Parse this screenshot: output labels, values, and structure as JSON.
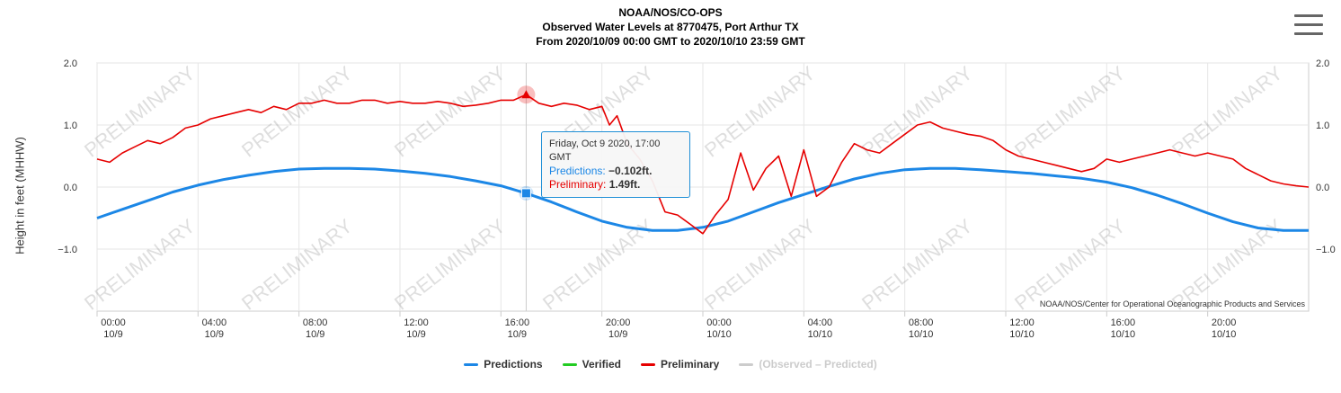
{
  "header": {
    "line1": "NOAA/NOS/CO-OPS",
    "line2": "Observed Water Levels at 8770475, Port Arthur TX",
    "line3": "From 2020/10/09 00:00 GMT to 2020/10/10 23:59 GMT"
  },
  "watermark": "PRELIMINARY",
  "credit": "NOAA/NOS/Center for Operational Oceanographic Products and Services",
  "legend": [
    {
      "label": "Predictions",
      "color": "#1c87e6",
      "disabled": false
    },
    {
      "label": "Verified",
      "color": "#22cc22",
      "disabled": false
    },
    {
      "label": "Preliminary",
      "color": "#e60000",
      "disabled": false
    },
    {
      "label": "(Observed – Predicted)",
      "color": "#cccccc",
      "disabled": true
    }
  ],
  "tooltip": {
    "date": "Friday, Oct 9 2020, 17:00 GMT",
    "pred_label": "Predictions:",
    "pred_value": "−0.102ft.",
    "prelim_label": "Preliminary:",
    "prelim_value": "1.49ft.",
    "hover_hour": 17
  },
  "chart_data": {
    "type": "line",
    "title": "Observed Water Levels at 8770475, Port Arthur TX",
    "ylabel": "Height in feet (MHHW)",
    "xlabel": "",
    "ylim": [
      -2.0,
      2.0
    ],
    "xlim_hours": [
      0,
      48
    ],
    "y_ticks": [
      {
        "v": 2.0,
        "label": "2.0"
      },
      {
        "v": 1.0,
        "label": "1.0"
      },
      {
        "v": 0.0,
        "label": "0.0"
      },
      {
        "v": -1.0,
        "label": "−1.0"
      }
    ],
    "x_ticks": [
      {
        "h": 0,
        "time": "00:00",
        "date": "10/9"
      },
      {
        "h": 4,
        "time": "04:00",
        "date": "10/9"
      },
      {
        "h": 8,
        "time": "08:00",
        "date": "10/9"
      },
      {
        "h": 12,
        "time": "12:00",
        "date": "10/9"
      },
      {
        "h": 16,
        "time": "16:00",
        "date": "10/9"
      },
      {
        "h": 20,
        "time": "20:00",
        "date": "10/9"
      },
      {
        "h": 24,
        "time": "00:00",
        "date": "10/10"
      },
      {
        "h": 28,
        "time": "04:00",
        "date": "10/10"
      },
      {
        "h": 32,
        "time": "08:00",
        "date": "10/10"
      },
      {
        "h": 36,
        "time": "12:00",
        "date": "10/10"
      },
      {
        "h": 40,
        "time": "16:00",
        "date": "10/10"
      },
      {
        "h": 44,
        "time": "20:00",
        "date": "10/10"
      }
    ],
    "grid": true,
    "series": [
      {
        "name": "Predictions",
        "color": "#1c87e6",
        "x": [
          0,
          1,
          2,
          3,
          4,
          5,
          6,
          7,
          8,
          9,
          10,
          11,
          12,
          13,
          14,
          15,
          16,
          17,
          18,
          19,
          20,
          21,
          22,
          23,
          24,
          25,
          26,
          27,
          28,
          29,
          30,
          31,
          32,
          33,
          34,
          35,
          36,
          37,
          38,
          39,
          40,
          41,
          42,
          43,
          44,
          45,
          46,
          47,
          48
        ],
        "y": [
          -0.5,
          -0.36,
          -0.22,
          -0.08,
          0.03,
          0.12,
          0.19,
          0.25,
          0.29,
          0.3,
          0.3,
          0.29,
          0.26,
          0.22,
          0.17,
          0.1,
          0.02,
          -0.1,
          -0.24,
          -0.4,
          -0.55,
          -0.65,
          -0.7,
          -0.7,
          -0.65,
          -0.55,
          -0.4,
          -0.25,
          -0.12,
          0.01,
          0.13,
          0.22,
          0.28,
          0.3,
          0.3,
          0.28,
          0.25,
          0.22,
          0.18,
          0.14,
          0.08,
          -0.01,
          -0.13,
          -0.27,
          -0.42,
          -0.56,
          -0.66,
          -0.7,
          -0.7
        ]
      },
      {
        "name": "Verified",
        "color": "#22cc22",
        "x": [],
        "y": []
      },
      {
        "name": "Preliminary",
        "color": "#e60000",
        "x": [
          0,
          0.5,
          1,
          1.5,
          2,
          2.5,
          3,
          3.5,
          4,
          4.5,
          5,
          5.5,
          6,
          6.5,
          7,
          7.5,
          8,
          8.5,
          9,
          9.5,
          10,
          10.5,
          11,
          11.5,
          12,
          12.5,
          13,
          13.5,
          14,
          14.5,
          15,
          15.5,
          16,
          16.5,
          17,
          17.5,
          18,
          18.5,
          19,
          19.5,
          20,
          20.3,
          20.6,
          21,
          21.5,
          22,
          22.5,
          23,
          23.5,
          24,
          24.5,
          25,
          25.5,
          26,
          26.5,
          27,
          27.5,
          28,
          28.5,
          29,
          29.5,
          30,
          30.5,
          31,
          31.5,
          32,
          32.5,
          33,
          33.5,
          34,
          34.5,
          35,
          35.5,
          36,
          36.5,
          37,
          37.5,
          38,
          38.5,
          39,
          39.5,
          40,
          40.5,
          41,
          41.5,
          42,
          42.5,
          43,
          43.5,
          44,
          44.5,
          45,
          45.5,
          46,
          46.5,
          47,
          47.5,
          48
        ],
        "y": [
          0.45,
          0.4,
          0.55,
          0.65,
          0.75,
          0.7,
          0.8,
          0.95,
          1.0,
          1.1,
          1.15,
          1.2,
          1.25,
          1.2,
          1.3,
          1.25,
          1.35,
          1.35,
          1.4,
          1.35,
          1.35,
          1.4,
          1.4,
          1.35,
          1.38,
          1.35,
          1.35,
          1.38,
          1.35,
          1.3,
          1.32,
          1.35,
          1.4,
          1.4,
          1.49,
          1.35,
          1.3,
          1.35,
          1.32,
          1.25,
          1.3,
          1.0,
          1.15,
          0.7,
          0.45,
          0.1,
          -0.4,
          -0.45,
          -0.6,
          -0.75,
          -0.45,
          -0.2,
          0.55,
          -0.05,
          0.3,
          0.5,
          -0.15,
          0.6,
          -0.15,
          0.0,
          0.4,
          0.7,
          0.6,
          0.55,
          0.7,
          0.85,
          1.0,
          1.05,
          0.95,
          0.9,
          0.85,
          0.82,
          0.75,
          0.6,
          0.5,
          0.45,
          0.4,
          0.35,
          0.3,
          0.25,
          0.3,
          0.45,
          0.4,
          0.45,
          0.5,
          0.55,
          0.6,
          0.55,
          0.5,
          0.55,
          0.5,
          0.45,
          0.3,
          0.2,
          0.1,
          0.05,
          0.02,
          0.0
        ]
      }
    ]
  }
}
